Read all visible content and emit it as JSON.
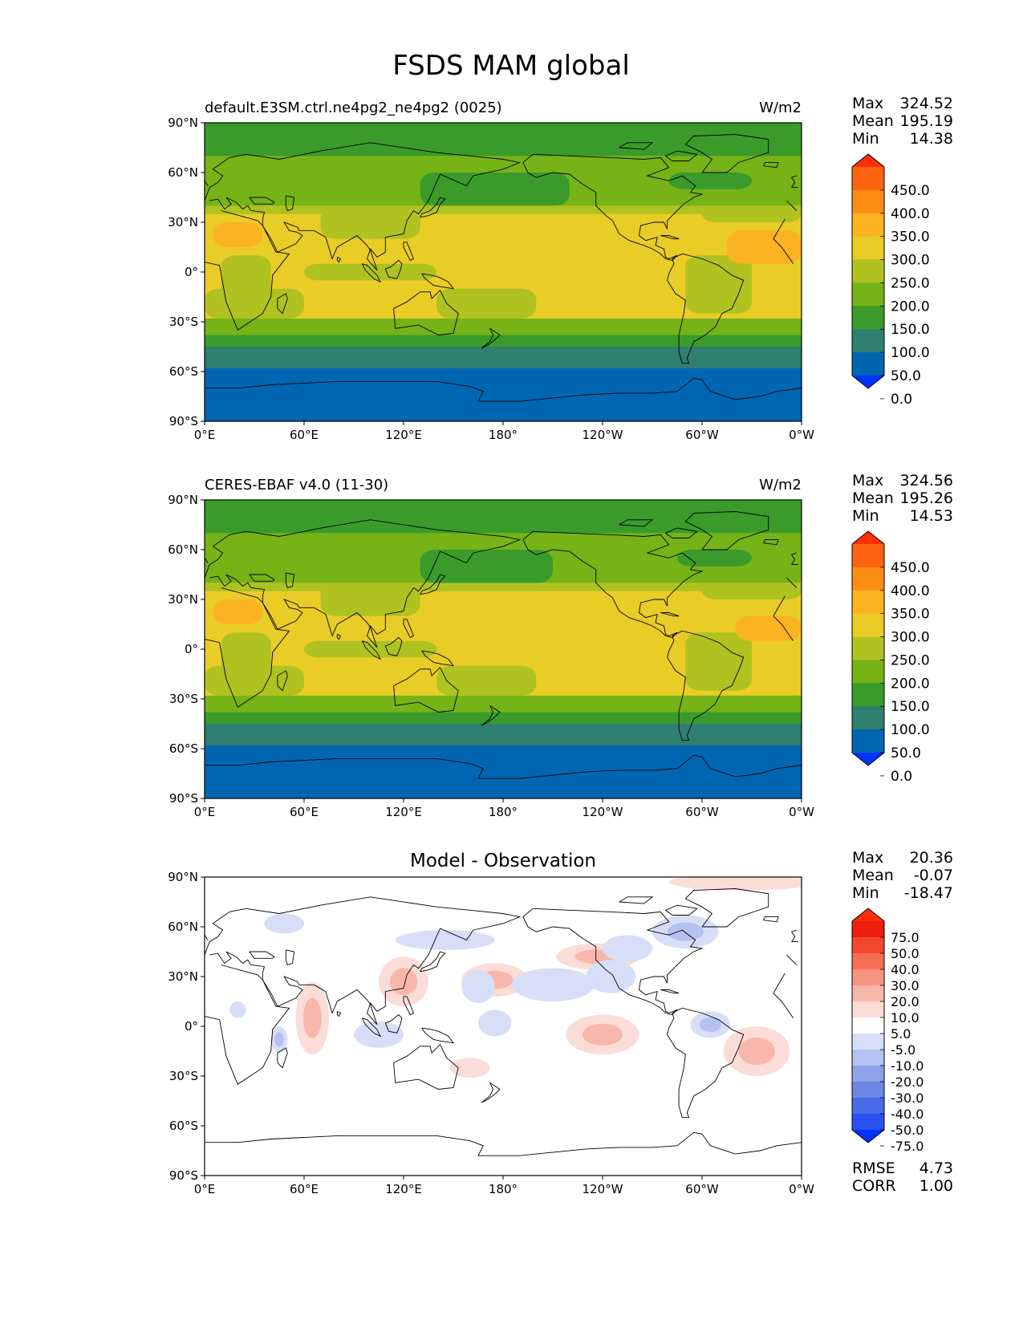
{
  "figure": {
    "title": "FSDS MAM global"
  },
  "axes_ticks": {
    "lat": [
      "90°N",
      "60°N",
      "30°N",
      "0°",
      "30°S",
      "60°S",
      "90°S"
    ],
    "lon": [
      "0°E",
      "60°E",
      "120°E",
      "180°",
      "120°W",
      "60°W",
      "0°W"
    ]
  },
  "panels": [
    {
      "title": "default.E3SM.ctrl.ne4pg2_ne4pg2 (0025)",
      "units": "W/m2",
      "stats": {
        "labels": [
          "Max",
          "Mean",
          "Min"
        ],
        "values": [
          "324.52",
          "195.19",
          "14.38"
        ]
      },
      "colorbar": {
        "labels": [
          "450.0",
          "400.0",
          "350.0",
          "300.0",
          "250.0",
          "200.0",
          "150.0",
          "100.0",
          "50.0",
          "0.0"
        ]
      }
    },
    {
      "title": "CERES-EBAF v4.0 (11-30)",
      "units": "W/m2",
      "stats": {
        "labels": [
          "Max",
          "Mean",
          "Min"
        ],
        "values": [
          "324.56",
          "195.26",
          "14.53"
        ]
      },
      "colorbar": {
        "labels": [
          "450.0",
          "400.0",
          "350.0",
          "300.0",
          "250.0",
          "200.0",
          "150.0",
          "100.0",
          "50.0",
          "0.0"
        ]
      }
    },
    {
      "title": "Model - Observation",
      "units": "",
      "stats": {
        "labels": [
          "Max",
          "Mean",
          "Min"
        ],
        "values": [
          "20.36",
          "-0.07",
          "-18.47"
        ]
      },
      "colorbar": {
        "labels": [
          "75.0",
          "50.0",
          "40.0",
          "30.0",
          "20.0",
          "10.0",
          "5.0",
          "-5.0",
          "-10.0",
          "-20.0",
          "-30.0",
          "-40.0",
          "-50.0",
          "-75.0"
        ]
      },
      "metrics": {
        "labels": [
          "RMSE",
          "CORR"
        ],
        "values": [
          "4.73",
          "1.00"
        ]
      }
    }
  ],
  "chart_data": [
    {
      "type": "heatmap",
      "title": "default.E3SM.ctrl.ne4pg2_ne4pg2 (0025)",
      "units": "W/m2",
      "xlim": [
        0,
        360
      ],
      "ylim": [
        -90,
        90
      ],
      "levels": [
        0,
        50,
        100,
        150,
        200,
        250,
        300,
        350,
        400,
        450
      ],
      "colors": [
        "#0033ff",
        "#0066b2",
        "#2e7f6f",
        "#3a9b2b",
        "#76b316",
        "#afc220",
        "#e9cc26",
        "#fcb321",
        "#fb8e12",
        "#fd6410",
        "#ff2e0a"
      ],
      "zonal_bands": [
        {
          "lat": [
            70,
            90
          ],
          "value": 125
        },
        {
          "lat": [
            40,
            70
          ],
          "value": 175
        },
        {
          "lat": [
            35,
            40
          ],
          "value": 225
        },
        {
          "lat": [
            -28,
            35
          ],
          "value": 275
        },
        {
          "lat": [
            -38,
            -28
          ],
          "value": 175
        },
        {
          "lat": [
            -45,
            -38
          ],
          "value": 125
        },
        {
          "lat": [
            -58,
            -45
          ],
          "value": 75
        },
        {
          "lat": [
            -90,
            -58
          ],
          "value": 25
        }
      ],
      "regions": [
        {
          "lon": [
            130,
            220
          ],
          "lat": [
            40,
            60
          ],
          "value": 125
        },
        {
          "lon": [
            280,
            330
          ],
          "lat": [
            50,
            60
          ],
          "value": 125
        },
        {
          "lon": [
            70,
            130
          ],
          "lat": [
            20,
            40
          ],
          "value": 225
        },
        {
          "lon": [
            300,
            360
          ],
          "lat": [
            30,
            40
          ],
          "value": 225
        },
        {
          "lon": [
            10,
            40
          ],
          "lat": [
            -20,
            10
          ],
          "value": 225
        },
        {
          "lon": [
            290,
            330
          ],
          "lat": [
            -25,
            10
          ],
          "value": 225
        },
        {
          "lon": [
            0,
            60
          ],
          "lat": [
            -28,
            -10
          ],
          "value": 225
        },
        {
          "lon": [
            140,
            200
          ],
          "lat": [
            -28,
            -10
          ],
          "value": 225
        },
        {
          "lon": [
            60,
            140
          ],
          "lat": [
            -5,
            5
          ],
          "value": 225
        },
        {
          "lon": [
            5,
            35
          ],
          "lat": [
            15,
            30
          ],
          "value": 325
        },
        {
          "lon": [
            315,
            360
          ],
          "lat": [
            5,
            25
          ],
          "value": 325
        }
      ]
    },
    {
      "type": "heatmap",
      "title": "CERES-EBAF v4.0 (11-30)",
      "units": "W/m2",
      "xlim": [
        0,
        360
      ],
      "ylim": [
        -90,
        90
      ],
      "levels": [
        0,
        50,
        100,
        150,
        200,
        250,
        300,
        350,
        400,
        450
      ],
      "colors": [
        "#0033ff",
        "#0066b2",
        "#2e7f6f",
        "#3a9b2b",
        "#76b316",
        "#afc220",
        "#e9cc26",
        "#fcb321",
        "#fb8e12",
        "#fd6410",
        "#ff2e0a"
      ],
      "zonal_bands": [
        {
          "lat": [
            70,
            90
          ],
          "value": 125
        },
        {
          "lat": [
            40,
            70
          ],
          "value": 175
        },
        {
          "lat": [
            35,
            40
          ],
          "value": 225
        },
        {
          "lat": [
            -28,
            35
          ],
          "value": 275
        },
        {
          "lat": [
            -38,
            -28
          ],
          "value": 175
        },
        {
          "lat": [
            -45,
            -38
          ],
          "value": 125
        },
        {
          "lat": [
            -58,
            -45
          ],
          "value": 75
        },
        {
          "lat": [
            -90,
            -58
          ],
          "value": 25
        }
      ],
      "regions": [
        {
          "lon": [
            130,
            210
          ],
          "lat": [
            40,
            60
          ],
          "value": 125
        },
        {
          "lon": [
            285,
            330
          ],
          "lat": [
            50,
            60
          ],
          "value": 125
        },
        {
          "lon": [
            70,
            130
          ],
          "lat": [
            20,
            40
          ],
          "value": 225
        },
        {
          "lon": [
            300,
            360
          ],
          "lat": [
            30,
            40
          ],
          "value": 225
        },
        {
          "lon": [
            10,
            40
          ],
          "lat": [
            -20,
            10
          ],
          "value": 225
        },
        {
          "lon": [
            290,
            330
          ],
          "lat": [
            -25,
            10
          ],
          "value": 225
        },
        {
          "lon": [
            0,
            60
          ],
          "lat": [
            -28,
            -10
          ],
          "value": 225
        },
        {
          "lon": [
            140,
            200
          ],
          "lat": [
            -28,
            -10
          ],
          "value": 225
        },
        {
          "lon": [
            60,
            140
          ],
          "lat": [
            -5,
            5
          ],
          "value": 225
        },
        {
          "lon": [
            5,
            35
          ],
          "lat": [
            15,
            30
          ],
          "value": 325
        },
        {
          "lon": [
            320,
            360
          ],
          "lat": [
            5,
            20
          ],
          "value": 325
        }
      ]
    },
    {
      "type": "heatmap",
      "title": "Model - Observation",
      "xlim": [
        0,
        360
      ],
      "ylim": [
        -90,
        90
      ],
      "levels": [
        -75,
        -50,
        -40,
        -30,
        -20,
        -10,
        -5,
        5,
        10,
        20,
        30,
        40,
        50,
        75
      ],
      "colors": [
        "#0033ff",
        "#2852f0",
        "#4a6ce8",
        "#6c88e4",
        "#8fa3ea",
        "#b4c1f1",
        "#d7def7",
        "#ffffff",
        "#fbdcd6",
        "#f8b7ab",
        "#f5947f",
        "#f56f55",
        "#f4482c",
        "#ee1d10",
        "#ff2e0a"
      ],
      "anomalies": [
        {
          "lon": 325,
          "lat": 87,
          "rx": 45,
          "ry": 5,
          "value": 7
        },
        {
          "lon": 65,
          "lat": 5,
          "rx": 10,
          "ry": 22,
          "value": 12
        },
        {
          "lon": 120,
          "lat": 27,
          "rx": 15,
          "ry": 15,
          "value": 12
        },
        {
          "lon": 175,
          "lat": 28,
          "rx": 20,
          "ry": 10,
          "value": 18
        },
        {
          "lon": 237,
          "lat": 42,
          "rx": 25,
          "ry": 8,
          "value": 10
        },
        {
          "lon": 240,
          "lat": -5,
          "rx": 22,
          "ry": 12,
          "value": 15
        },
        {
          "lon": 333,
          "lat": -15,
          "rx": 20,
          "ry": 15,
          "value": 10
        },
        {
          "lon": 145,
          "lat": 52,
          "rx": 30,
          "ry": 6,
          "value": -8
        },
        {
          "lon": 210,
          "lat": 25,
          "rx": 25,
          "ry": 10,
          "value": -10
        },
        {
          "lon": 290,
          "lat": 57,
          "rx": 20,
          "ry": 10,
          "value": -18
        },
        {
          "lon": 305,
          "lat": 1,
          "rx": 12,
          "ry": 8,
          "value": -15
        },
        {
          "lon": 175,
          "lat": 2,
          "rx": 10,
          "ry": 8,
          "value": -8
        },
        {
          "lon": 245,
          "lat": 30,
          "rx": 15,
          "ry": 10,
          "value": -8
        },
        {
          "lon": 255,
          "lat": 47,
          "rx": 15,
          "ry": 8,
          "value": -10
        },
        {
          "lon": 105,
          "lat": -5,
          "rx": 15,
          "ry": 8,
          "value": -8
        },
        {
          "lon": 48,
          "lat": 62,
          "rx": 12,
          "ry": 6,
          "value": -10
        },
        {
          "lon": 45,
          "lat": -8,
          "rx": 5,
          "ry": 8,
          "value": -12
        },
        {
          "lon": 20,
          "lat": 10,
          "rx": 5,
          "ry": 5,
          "value": -8
        },
        {
          "lon": 160,
          "lat": -25,
          "rx": 12,
          "ry": 6,
          "value": 8
        },
        {
          "lon": 165,
          "lat": 24,
          "rx": 10,
          "ry": 10,
          "value": -8
        }
      ]
    }
  ]
}
